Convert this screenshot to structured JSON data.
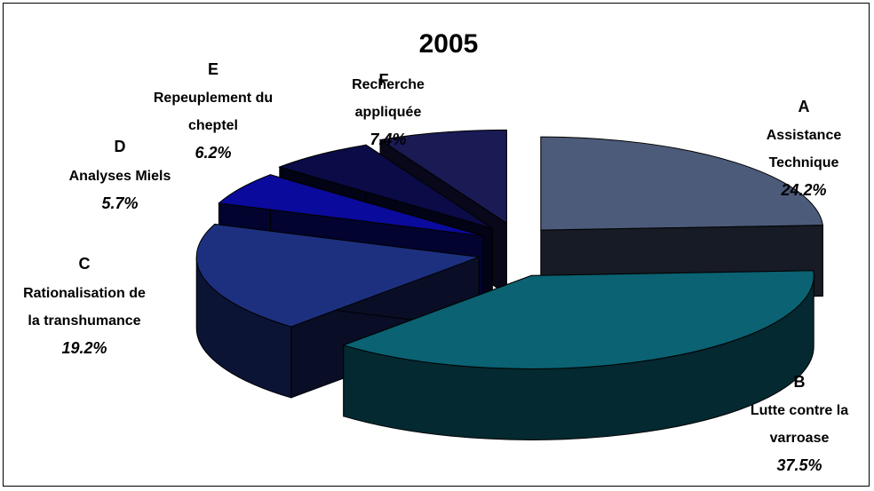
{
  "chart_data": {
    "type": "pie",
    "title": "2005",
    "letters": [
      "A",
      "B",
      "C",
      "D",
      "E",
      "F"
    ],
    "categories": [
      "Assistance Technique",
      "Lutte contre la varroase",
      "Rationalisation de la transhumance",
      "Analyses Miels",
      "Repeuplement du cheptel",
      "Recherche appliquée"
    ],
    "values": [
      24.2,
      37.5,
      19.2,
      5.7,
      6.2,
      7.4
    ],
    "value_labels": [
      "24.2%",
      "37.5%",
      "19.2%",
      "5.7%",
      "6.2%",
      "7.4%"
    ],
    "colors": [
      "#4c5b7a",
      "#0a6272",
      "#1d3080",
      "#0a0a9c",
      "#0b0b48",
      "#1a1a55"
    ]
  }
}
